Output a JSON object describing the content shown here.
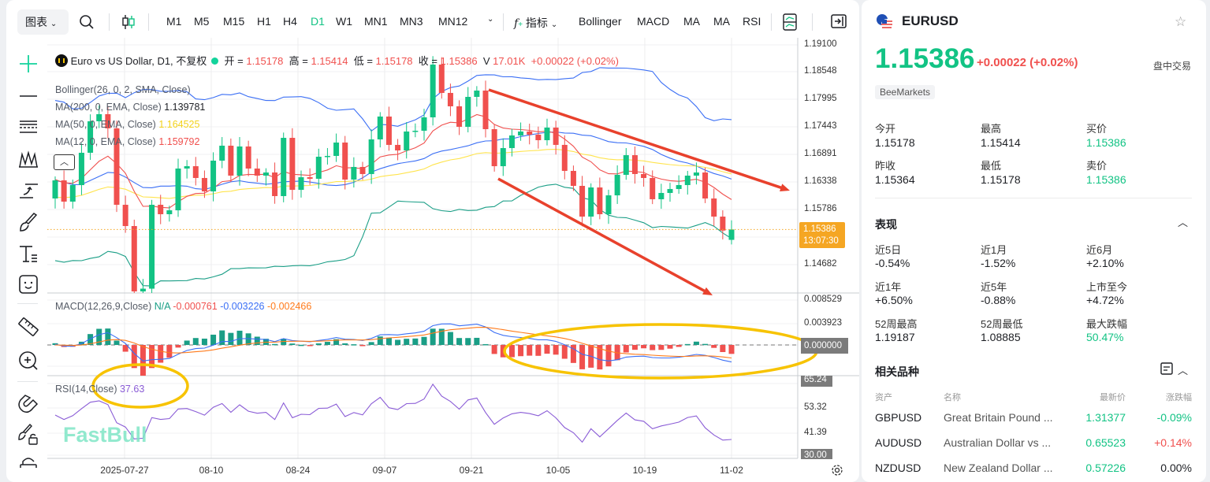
{
  "toolbar": {
    "chart_menu": "图表",
    "timeframes": [
      "M1",
      "M5",
      "M15",
      "H1",
      "H4",
      "D1",
      "W1",
      "MN1",
      "MN3",
      "MN12"
    ],
    "active_timeframe": "D1",
    "indicators_label": "指标",
    "indicator_shortcuts": [
      "Bollinger",
      "MACD",
      "MA",
      "MA",
      "RSI"
    ]
  },
  "legend": {
    "symbol_title": "Euro vs US Dollar, D1, 不复权",
    "open_label": "开 =",
    "open": "1.15178",
    "high_label": "高 =",
    "high": "1.15414",
    "low_label": "低 =",
    "low": "1.15178",
    "close_label": "收 =",
    "close": "1.15386",
    "volume_label": "V",
    "volume": "17.01K",
    "change": "+0.00022 (+0.02%)"
  },
  "indicators": {
    "bollinger": "Bollinger(26, 0, 2, SMA, Close)",
    "ma200": {
      "label": "MA(200, 0, EMA, Close)",
      "value": "1.139781"
    },
    "ma50": {
      "label": "MA(50, 0, EMA, Close)",
      "value": "1.164525"
    },
    "ma12": {
      "label": "MA(12, 0, EMA, Close)",
      "value": "1.159792"
    },
    "macd": {
      "label": "MACD(12,26,9,Close)",
      "na": "N/A",
      "hist": "-0.000761",
      "macd": "-0.003226",
      "signal": "-0.002466"
    },
    "rsi": {
      "label": "RSI(14,Close)",
      "value": "37.63"
    }
  },
  "price_axis": [
    "1.19100",
    "1.18548",
    "1.17995",
    "1.17443",
    "1.16891",
    "1.16338",
    "1.15786",
    "1.14682"
  ],
  "current_price_tag": {
    "price": "1.15386",
    "countdown": "13:07:30"
  },
  "macd_axis": [
    "0.008529",
    "0.003923",
    "0.000000"
  ],
  "rsi_axis": [
    "65.24",
    "53.32",
    "41.39",
    "30.00"
  ],
  "date_axis": [
    "2025-07-27",
    "08-10",
    "08-24",
    "09-07",
    "09-21",
    "10-05",
    "10-19",
    "11-02"
  ],
  "watermark": "FastBull",
  "colors": {
    "up": "#12c384",
    "down": "#f0504e",
    "bb": "#3b6ff5",
    "ma50": "#ffe44d",
    "ma12": "#f0504e",
    "bb_lower": "#1a9e86",
    "macd": "#3b6ff5",
    "signal": "#ff7a1a",
    "rsi": "#8a5cd6",
    "annotation_arrow": "#e8412c",
    "annotation_ellipse": "#f7c300",
    "price_tag": "#f5a623"
  },
  "chart_data": {
    "type": "candlestick",
    "first_open": 1.16007,
    "close": [
      1.1637,
      1.15944,
      1.16275,
      1.16923,
      1.17554,
      1.17696,
      1.17412,
      1.15881,
      1.15455,
      1.14145,
      1.142,
      1.15881,
      1.15692,
      1.1577,
      1.16607,
      1.16654,
      1.16418,
      1.16149,
      1.16765,
      1.17065,
      1.16465,
      1.17049,
      1.16607,
      1.16465,
      1.16528,
      1.16055,
      1.17222,
      1.1618,
      1.16433,
      1.16402,
      1.16844,
      1.1686,
      1.17128,
      1.16386,
      1.16639,
      1.16497,
      1.17191,
      1.17649,
      1.17081,
      1.1697,
      1.17349,
      1.17364,
      1.17633,
      1.1869,
      1.18122,
      1.17854,
      1.17443,
      1.18043,
      1.18169,
      1.17396,
      1.16654,
      1.17017,
      1.1727,
      1.17349,
      1.17286,
      1.17175,
      1.17428,
      1.17081,
      1.1656,
      1.1626,
      1.15644,
      1.16228,
      1.15692,
      1.1607,
      1.16481,
      1.16875,
      1.16497,
      1.16418,
      1.15992,
      1.16118,
      1.16197,
      1.16276,
      1.16465,
      1.16528,
      1.16007,
      1.15644,
      1.15364,
      1.15386
    ]
  },
  "quote": {
    "symbol": "EURUSD",
    "price": "1.15386",
    "change": "+0.00022",
    "change_pct": "(+0.02%)",
    "session": "盘中交易",
    "source": "BeeMarkets",
    "stats": [
      {
        "label": "今开",
        "value": "1.15178",
        "tone": ""
      },
      {
        "label": "最高",
        "value": "1.15414",
        "tone": ""
      },
      {
        "label": "买价",
        "value": "1.15386",
        "tone": "g"
      },
      {
        "label": "昨收",
        "value": "1.15364",
        "tone": ""
      },
      {
        "label": "最低",
        "value": "1.15178",
        "tone": ""
      },
      {
        "label": "卖价",
        "value": "1.15386",
        "tone": "g"
      }
    ]
  },
  "performance": {
    "title": "表现",
    "items": [
      {
        "label": "近5日",
        "value": "-0.54%",
        "tone": ""
      },
      {
        "label": "近1月",
        "value": "-1.52%",
        "tone": ""
      },
      {
        "label": "近6月",
        "value": "+2.10%",
        "tone": ""
      },
      {
        "label": "近1年",
        "value": "+6.50%",
        "tone": ""
      },
      {
        "label": "近5年",
        "value": "-0.88%",
        "tone": ""
      },
      {
        "label": "上市至今",
        "value": "+4.72%",
        "tone": ""
      },
      {
        "label": "52周最高",
        "value": "1.19187",
        "tone": ""
      },
      {
        "label": "52周最低",
        "value": "1.08885",
        "tone": ""
      },
      {
        "label": "最大跌幅",
        "value": "50.47%",
        "tone": "g"
      }
    ]
  },
  "related": {
    "title": "相关品种",
    "headers": [
      "资产",
      "名称",
      "最新价",
      "涨跌幅"
    ],
    "rows": [
      {
        "asset": "GBPUSD",
        "name": "Great Britain Pound ...",
        "price": "1.31377",
        "change": "-0.09%",
        "tone": "g"
      },
      {
        "asset": "AUDUSD",
        "name": "Australian Dollar vs ...",
        "price": "0.65523",
        "change": "+0.14%",
        "tone": "r"
      },
      {
        "asset": "NZDUSD",
        "name": "New Zealand Dollar ...",
        "price": "0.57226",
        "change": "0.00%",
        "tone": ""
      }
    ]
  }
}
